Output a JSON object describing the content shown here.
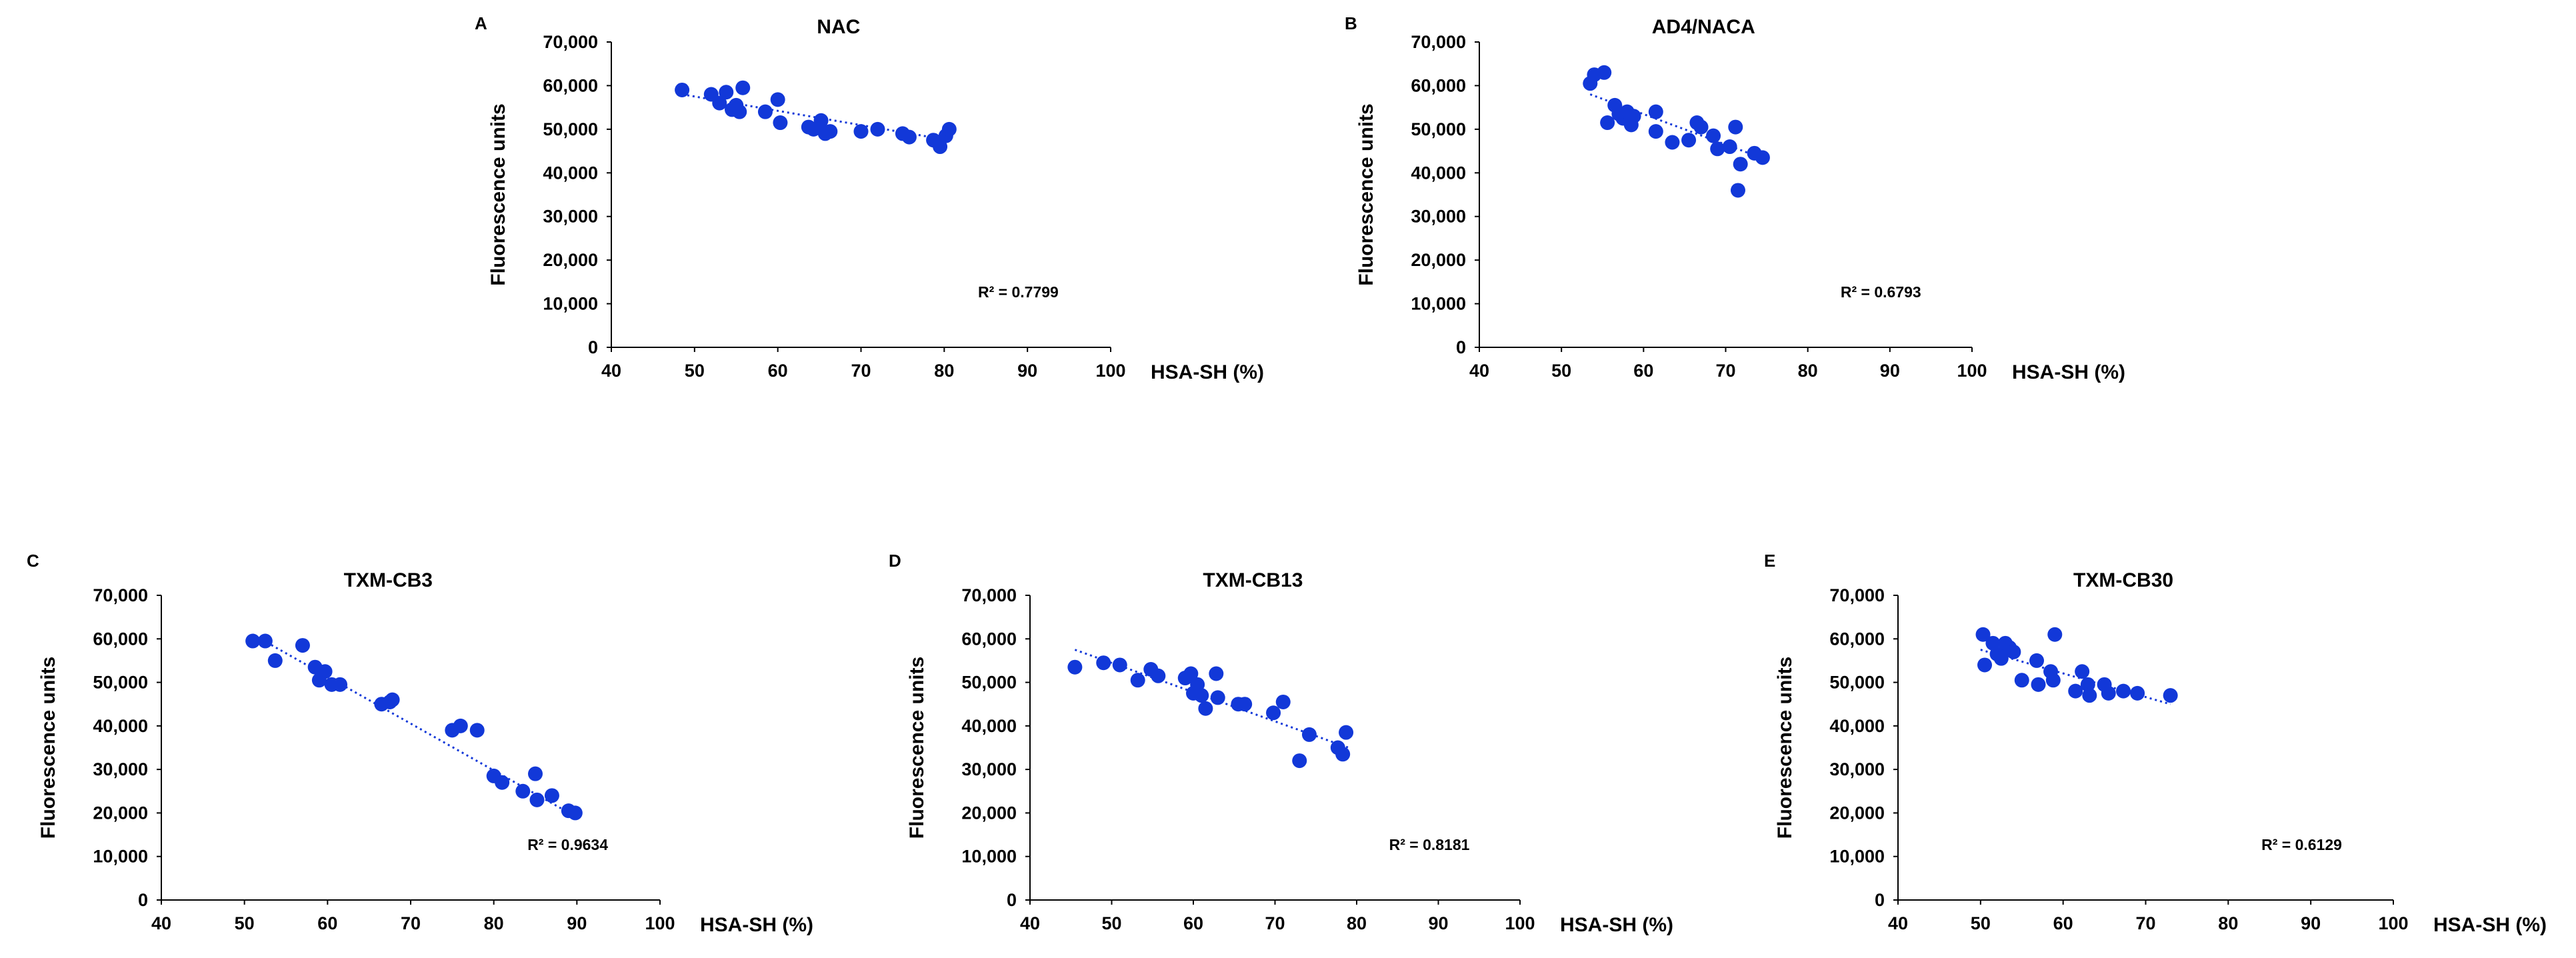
{
  "chart_data": [
    {
      "panel": "A",
      "type": "scatter",
      "title": "NAC",
      "xlabel": "HSA-SH (%)",
      "ylabel": "Fluorescence units",
      "xlim": [
        40,
        100
      ],
      "ylim": [
        0,
        70000
      ],
      "x_ticks": [
        "40",
        "50",
        "60",
        "70",
        "80",
        "90",
        "100"
      ],
      "y_ticks": [
        "0",
        "10,000",
        "20,000",
        "30,000",
        "40,000",
        "50,000",
        "60,000",
        "70,000"
      ],
      "r2_label": "R² = 0.7799",
      "trendline": {
        "x": [
          48.5,
          80.5
        ],
        "y": [
          58000,
          47500
        ]
      },
      "points": [
        {
          "x": 48.5,
          "y": 59000
        },
        {
          "x": 52,
          "y": 58000
        },
        {
          "x": 53,
          "y": 56000
        },
        {
          "x": 53.8,
          "y": 58500
        },
        {
          "x": 54.5,
          "y": 54500
        },
        {
          "x": 55,
          "y": 55500
        },
        {
          "x": 55.4,
          "y": 54000
        },
        {
          "x": 55.8,
          "y": 59500
        },
        {
          "x": 58.5,
          "y": 54000
        },
        {
          "x": 60,
          "y": 56800
        },
        {
          "x": 60.3,
          "y": 51500
        },
        {
          "x": 63.7,
          "y": 50500
        },
        {
          "x": 64.3,
          "y": 50000
        },
        {
          "x": 65.2,
          "y": 52000
        },
        {
          "x": 65.7,
          "y": 49000
        },
        {
          "x": 66.3,
          "y": 49500
        },
        {
          "x": 70,
          "y": 49500
        },
        {
          "x": 72,
          "y": 50000
        },
        {
          "x": 75,
          "y": 49000
        },
        {
          "x": 75.8,
          "y": 48200
        },
        {
          "x": 78.7,
          "y": 47500
        },
        {
          "x": 79.5,
          "y": 46000
        },
        {
          "x": 80.2,
          "y": 48500
        },
        {
          "x": 80.6,
          "y": 50000
        }
      ]
    },
    {
      "panel": "B",
      "type": "scatter",
      "title": "AD4/NACA",
      "xlabel": "HSA-SH (%)",
      "ylabel": "Fluorescence units",
      "xlim": [
        40,
        100
      ],
      "ylim": [
        0,
        70000
      ],
      "x_ticks": [
        "40",
        "50",
        "60",
        "70",
        "80",
        "90",
        "100"
      ],
      "y_ticks": [
        "0",
        "10,000",
        "20,000",
        "30,000",
        "40,000",
        "50,000",
        "60,000",
        "70,000"
      ],
      "r2_label": "R² = 0.6793",
      "trendline": {
        "x": [
          53.5,
          75
        ],
        "y": [
          58000,
          43000
        ]
      },
      "points": [
        {
          "x": 53.5,
          "y": 60500
        },
        {
          "x": 54,
          "y": 62500
        },
        {
          "x": 55.2,
          "y": 63000
        },
        {
          "x": 55.6,
          "y": 51500
        },
        {
          "x": 56.5,
          "y": 55500
        },
        {
          "x": 57,
          "y": 53500
        },
        {
          "x": 57.5,
          "y": 52500
        },
        {
          "x": 58,
          "y": 54000
        },
        {
          "x": 58.5,
          "y": 51000
        },
        {
          "x": 58.8,
          "y": 53000
        },
        {
          "x": 61.5,
          "y": 54000
        },
        {
          "x": 61.5,
          "y": 49500
        },
        {
          "x": 63.5,
          "y": 47000
        },
        {
          "x": 65.5,
          "y": 47500
        },
        {
          "x": 66.5,
          "y": 51500
        },
        {
          "x": 67,
          "y": 50500
        },
        {
          "x": 68.5,
          "y": 48500
        },
        {
          "x": 69,
          "y": 45500
        },
        {
          "x": 70.5,
          "y": 46000
        },
        {
          "x": 71.2,
          "y": 50500
        },
        {
          "x": 71.5,
          "y": 36000
        },
        {
          "x": 71.8,
          "y": 42000
        },
        {
          "x": 73.5,
          "y": 44500
        },
        {
          "x": 74.5,
          "y": 43500
        }
      ]
    },
    {
      "panel": "C",
      "type": "scatter",
      "title": "TXM-CB3",
      "xlabel": "HSA-SH (%)",
      "ylabel": "Fluorescence units",
      "xlim": [
        40,
        100
      ],
      "ylim": [
        0,
        70000
      ],
      "x_ticks": [
        "40",
        "50",
        "60",
        "70",
        "80",
        "90",
        "100"
      ],
      "y_ticks": [
        "0",
        "10,000",
        "20,000",
        "30,000",
        "40,000",
        "50,000",
        "60,000",
        "70,000"
      ],
      "r2_label": "R² = 0.9634",
      "trendline": {
        "x": [
          51,
          90
        ],
        "y": [
          61000,
          19000
        ]
      },
      "points": [
        {
          "x": 51,
          "y": 59500
        },
        {
          "x": 52.5,
          "y": 59500
        },
        {
          "x": 53.7,
          "y": 55000
        },
        {
          "x": 57,
          "y": 58500
        },
        {
          "x": 58.5,
          "y": 53500
        },
        {
          "x": 59,
          "y": 50500
        },
        {
          "x": 59.7,
          "y": 52500
        },
        {
          "x": 60.5,
          "y": 49500
        },
        {
          "x": 61.5,
          "y": 49500
        },
        {
          "x": 66.5,
          "y": 45000
        },
        {
          "x": 67.5,
          "y": 45500
        },
        {
          "x": 67.8,
          "y": 46000
        },
        {
          "x": 75,
          "y": 39000
        },
        {
          "x": 76,
          "y": 40000
        },
        {
          "x": 78,
          "y": 39000
        },
        {
          "x": 80,
          "y": 28500
        },
        {
          "x": 81,
          "y": 27000
        },
        {
          "x": 83.5,
          "y": 25000
        },
        {
          "x": 85,
          "y": 29000
        },
        {
          "x": 85.2,
          "y": 23000
        },
        {
          "x": 87,
          "y": 24000
        },
        {
          "x": 89,
          "y": 20500
        },
        {
          "x": 89.8,
          "y": 20000
        }
      ]
    },
    {
      "panel": "D",
      "type": "scatter",
      "title": "TXM-CB13",
      "xlabel": "HSA-SH (%)",
      "ylabel": "Fluorescence units",
      "xlim": [
        40,
        100
      ],
      "ylim": [
        0,
        70000
      ],
      "x_ticks": [
        "40",
        "50",
        "60",
        "70",
        "80",
        "90",
        "100"
      ],
      "y_ticks": [
        "0",
        "10,000",
        "20,000",
        "30,000",
        "40,000",
        "50,000",
        "60,000",
        "70,000"
      ],
      "r2_label": "R² = 0.8181",
      "trendline": {
        "x": [
          45.5,
          79
        ],
        "y": [
          57500,
          35000
        ]
      },
      "points": [
        {
          "x": 45.5,
          "y": 53500
        },
        {
          "x": 49,
          "y": 54500
        },
        {
          "x": 51,
          "y": 54000
        },
        {
          "x": 53.2,
          "y": 50500
        },
        {
          "x": 54.8,
          "y": 53000
        },
        {
          "x": 55.7,
          "y": 51500
        },
        {
          "x": 59,
          "y": 51000
        },
        {
          "x": 59.7,
          "y": 52000
        },
        {
          "x": 60,
          "y": 47500
        },
        {
          "x": 60.5,
          "y": 49500
        },
        {
          "x": 61,
          "y": 47000
        },
        {
          "x": 61.5,
          "y": 44000
        },
        {
          "x": 62.8,
          "y": 52000
        },
        {
          "x": 63,
          "y": 46500
        },
        {
          "x": 65.5,
          "y": 45000
        },
        {
          "x": 66.3,
          "y": 45000
        },
        {
          "x": 69.8,
          "y": 43000
        },
        {
          "x": 71,
          "y": 45500
        },
        {
          "x": 73,
          "y": 32000
        },
        {
          "x": 74.2,
          "y": 38000
        },
        {
          "x": 77.7,
          "y": 35000
        },
        {
          "x": 78.3,
          "y": 33500
        },
        {
          "x": 78.7,
          "y": 38500
        }
      ]
    },
    {
      "panel": "E",
      "type": "scatter",
      "title": "TXM-CB30",
      "xlabel": "HSA-SH (%)",
      "ylabel": "Fluorescence units",
      "xlim": [
        40,
        100
      ],
      "ylim": [
        0,
        70000
      ],
      "x_ticks": [
        "40",
        "50",
        "60",
        "70",
        "80",
        "90",
        "100"
      ],
      "y_ticks": [
        "0",
        "10,000",
        "20,000",
        "30,000",
        "40,000",
        "50,000",
        "60,000",
        "70,000"
      ],
      "r2_label": "R² = 0.6129",
      "trendline": {
        "x": [
          50,
          73
        ],
        "y": [
          57500,
          45000
        ]
      },
      "points": [
        {
          "x": 50.3,
          "y": 61000
        },
        {
          "x": 50.5,
          "y": 54000
        },
        {
          "x": 51.5,
          "y": 59000
        },
        {
          "x": 52,
          "y": 56500
        },
        {
          "x": 52.5,
          "y": 55500
        },
        {
          "x": 53,
          "y": 59000
        },
        {
          "x": 53.5,
          "y": 58000
        },
        {
          "x": 54,
          "y": 57000
        },
        {
          "x": 55,
          "y": 50500
        },
        {
          "x": 56.8,
          "y": 55000
        },
        {
          "x": 57,
          "y": 49500
        },
        {
          "x": 58.5,
          "y": 52500
        },
        {
          "x": 58.8,
          "y": 50500
        },
        {
          "x": 59,
          "y": 61000
        },
        {
          "x": 61.5,
          "y": 48000
        },
        {
          "x": 62.3,
          "y": 52500
        },
        {
          "x": 63,
          "y": 49500
        },
        {
          "x": 63.2,
          "y": 47000
        },
        {
          "x": 65,
          "y": 49500
        },
        {
          "x": 65.5,
          "y": 47500
        },
        {
          "x": 67.3,
          "y": 48000
        },
        {
          "x": 69,
          "y": 47500
        },
        {
          "x": 73,
          "y": 47000
        }
      ]
    }
  ]
}
